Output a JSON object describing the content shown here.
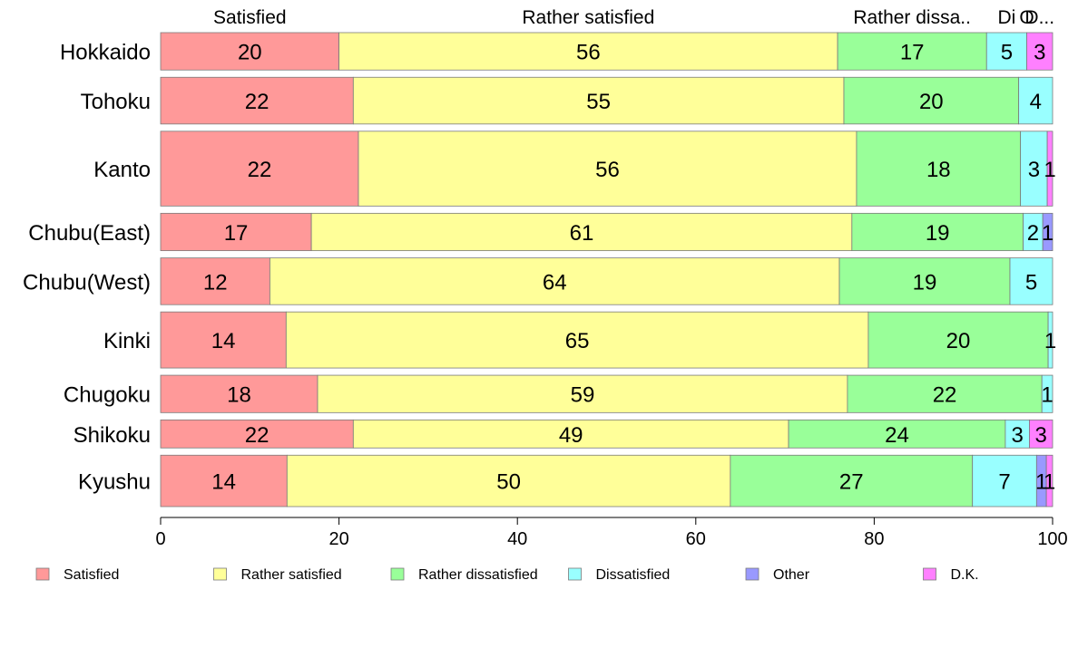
{
  "chart_data": {
    "type": "bar",
    "orientation": "horizontal",
    "stacked": true,
    "categories": [
      "Hokkaido",
      "Tohoku",
      "Kanto",
      "Chubu(East)",
      "Chubu(West)",
      "Kinki",
      "Chugoku",
      "Shikoku",
      "Kyushu"
    ],
    "series": [
      {
        "name": "Satisfied",
        "color": "#FF9999",
        "values": [
          20.0,
          21.6,
          22.2,
          16.9,
          12.3,
          14.1,
          17.6,
          21.6,
          14.2
        ]
      },
      {
        "name": "Rather satisfied",
        "color": "#FFFF99",
        "values": [
          55.9,
          55.0,
          55.9,
          60.6,
          64.1,
          65.4,
          59.4,
          48.8,
          49.8
        ]
      },
      {
        "name": "Rather dissatisfied",
        "color": "#99FF99",
        "values": [
          16.7,
          19.6,
          18.4,
          19.2,
          19.2,
          20.2,
          21.8,
          24.3,
          27.2
        ]
      },
      {
        "name": "Dissatisfied",
        "color": "#99FFFF",
        "values": [
          4.5,
          3.8,
          3.0,
          2.2,
          4.8,
          0.5,
          1.2,
          2.7,
          7.2
        ]
      },
      {
        "name": "Other",
        "color": "#9999FF",
        "values": [
          0.0,
          0.0,
          0.0,
          1.1,
          0.0,
          0.0,
          0.0,
          0.0,
          1.1
        ]
      },
      {
        "name": "D.K.",
        "color": "#FF80FF",
        "values": [
          2.9,
          0.0,
          0.6,
          0.0,
          0.0,
          0.0,
          0.0,
          2.6,
          0.7
        ]
      }
    ],
    "bar_labels": [
      [
        "20",
        "56",
        "17",
        "5",
        "",
        "3"
      ],
      [
        "22",
        "55",
        "20",
        "4",
        "",
        ""
      ],
      [
        "22",
        "56",
        "18",
        "3",
        "",
        "1"
      ],
      [
        "17",
        "61",
        "19",
        "2",
        "1",
        ""
      ],
      [
        "12",
        "64",
        "19",
        "5",
        "",
        ""
      ],
      [
        "14",
        "65",
        "20",
        "1",
        "",
        ""
      ],
      [
        "18",
        "59",
        "22",
        "1",
        "",
        ""
      ],
      [
        "22",
        "49",
        "24",
        "3",
        "",
        "3"
      ],
      [
        "14",
        "50",
        "27",
        "7",
        "1",
        "1"
      ]
    ],
    "top_labels": [
      "Satisfied",
      "Rather satisfied",
      "Rather dissa..",
      "Di",
      "O",
      "D..."
    ],
    "bar_weights": [
      8,
      10,
      16,
      8,
      10,
      12,
      8,
      6,
      11
    ],
    "xlim": [
      0,
      100
    ],
    "xticks": [
      "0",
      "20",
      "40",
      "60",
      "80",
      "100"
    ],
    "legend": [
      "Satisfied",
      "Rather satisfied",
      "Rather dissatisfied",
      "Dissatisfied",
      "Other",
      "D.K."
    ],
    "legend_position": "bottom",
    "grid": false
  }
}
